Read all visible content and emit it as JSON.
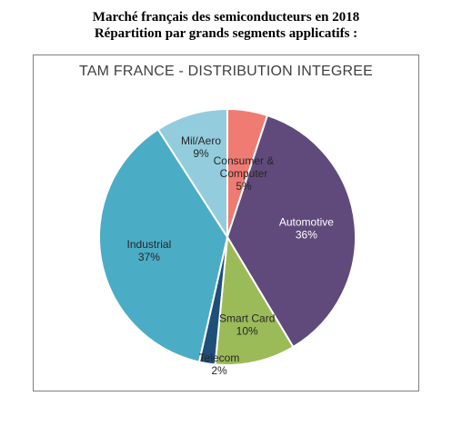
{
  "document": {
    "title_line1": "Marché français des semiconducteurs en 2018",
    "title_line2": "Répartition par grands segments applicatifs :"
  },
  "chart_data": {
    "type": "pie",
    "title": "TAM FRANCE - DISTRIBUTION INTEGREE",
    "start_angle_deg": 0,
    "direction": "clockwise",
    "slices": [
      {
        "label_lines": [
          "Consumer &",
          "Computer"
        ],
        "value": 5,
        "value_label": "5%",
        "color": "#f07b72"
      },
      {
        "label_lines": [
          "Automotive"
        ],
        "value": 36,
        "value_label": "36%",
        "color": "#604a7b"
      },
      {
        "label_lines": [
          "Smart Card"
        ],
        "value": 10,
        "value_label": "10%",
        "color": "#9bbb59"
      },
      {
        "label_lines": [
          "Telecom"
        ],
        "value": 2,
        "value_label": "2%",
        "color": "#1f4e79"
      },
      {
        "label_lines": [
          "Industrial"
        ],
        "value": 37,
        "value_label": "37%",
        "color": "#4bacc6"
      },
      {
        "label_lines": [
          "Mil/Aero"
        ],
        "value": 9,
        "value_label": "9%",
        "color": "#93cddd"
      }
    ]
  }
}
